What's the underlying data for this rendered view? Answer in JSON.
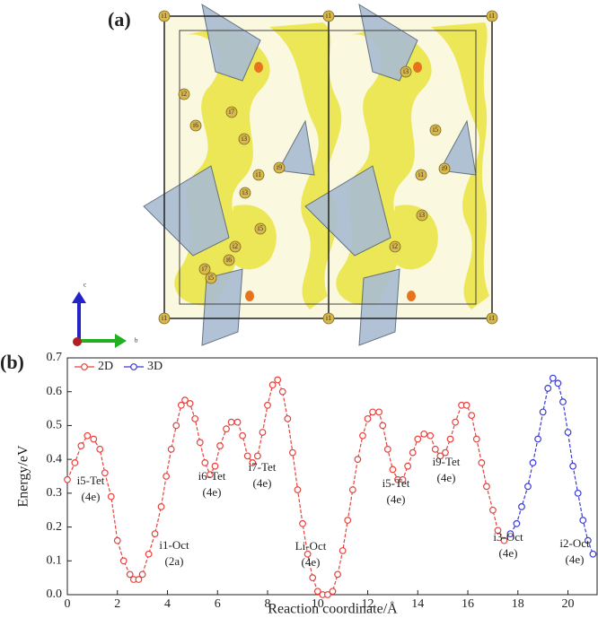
{
  "panel_labels": [
    "(a)",
    "(b)"
  ],
  "structure": {
    "axes": [
      "c",
      "b"
    ],
    "atom_labels": [
      "i1",
      "i1",
      "i1",
      "i1",
      "i1",
      "i1",
      "i2",
      "i3",
      "i5",
      "i6",
      "i7",
      "i9",
      "i1",
      "i2",
      "i3",
      "i5",
      "i6",
      "i7",
      "i9",
      "i1",
      "i3",
      "i5",
      "i2",
      "i3"
    ]
  },
  "chart_data": {
    "type": "line",
    "xlabel": "Reaction coordinate/Å",
    "ylabel": "Energy/eV",
    "xlim": [
      0,
      21.2
    ],
    "ylim": [
      0,
      0.7
    ],
    "xticks": [
      0,
      2,
      4,
      6,
      8,
      10,
      12,
      14,
      16,
      18,
      20
    ],
    "yticks": [
      {
        "value": 0,
        "label": "0.0"
      },
      0.1,
      0.2,
      0.3,
      0.4,
      0.5,
      0.6,
      0.7
    ],
    "legend": "top-left",
    "series": [
      {
        "name": "2D",
        "color": "#e8413c",
        "x": [
          0,
          0.3,
          0.55,
          0.8,
          1.05,
          1.3,
          1.5,
          1.75,
          2.0,
          2.25,
          2.5,
          2.65,
          2.85,
          3.0,
          3.25,
          3.5,
          3.75,
          3.95,
          4.15,
          4.35,
          4.55,
          4.7,
          4.9,
          5.1,
          5.3,
          5.5,
          5.7,
          5.9,
          6.1,
          6.35,
          6.55,
          6.8,
          7.0,
          7.2,
          7.4,
          7.6,
          7.8,
          8.0,
          8.2,
          8.4,
          8.6,
          8.8,
          9.0,
          9.2,
          9.4,
          9.6,
          9.8,
          10.0,
          10.2,
          10.4,
          10.6,
          10.8,
          11.0,
          11.2,
          11.4,
          11.6,
          11.8,
          12.0,
          12.2,
          12.45,
          12.6,
          12.8,
          13.0,
          13.2,
          13.4,
          13.6,
          13.8,
          14.0,
          14.25,
          14.5,
          14.7,
          14.9,
          15.1,
          15.3,
          15.5,
          15.75,
          15.95,
          16.15,
          16.35,
          16.55,
          16.75,
          17.0,
          17.2,
          17.45
        ],
        "values": [
          0.34,
          0.39,
          0.44,
          0.47,
          0.46,
          0.43,
          0.36,
          0.29,
          0.16,
          0.1,
          0.06,
          0.045,
          0.045,
          0.06,
          0.12,
          0.18,
          0.26,
          0.35,
          0.43,
          0.5,
          0.56,
          0.575,
          0.565,
          0.52,
          0.45,
          0.39,
          0.355,
          0.38,
          0.44,
          0.49,
          0.51,
          0.51,
          0.47,
          0.41,
          0.39,
          0.41,
          0.48,
          0.56,
          0.62,
          0.635,
          0.6,
          0.52,
          0.42,
          0.31,
          0.21,
          0.12,
          0.05,
          0.01,
          0.0,
          0.0,
          0.01,
          0.06,
          0.13,
          0.22,
          0.31,
          0.4,
          0.47,
          0.52,
          0.54,
          0.54,
          0.5,
          0.43,
          0.37,
          0.34,
          0.34,
          0.38,
          0.42,
          0.46,
          0.475,
          0.47,
          0.43,
          0.41,
          0.42,
          0.46,
          0.51,
          0.56,
          0.56,
          0.53,
          0.46,
          0.39,
          0.32,
          0.25,
          0.19,
          0.16
        ]
      },
      {
        "name": "3D",
        "color": "#3b3bd6",
        "x": [
          17.7,
          17.95,
          18.15,
          18.4,
          18.6,
          18.8,
          19.0,
          19.2,
          19.4,
          19.6,
          19.8,
          20.0,
          20.2,
          20.4,
          20.6,
          20.8,
          21.0
        ],
        "values": [
          0.18,
          0.21,
          0.26,
          0.32,
          0.39,
          0.46,
          0.54,
          0.61,
          0.64,
          0.625,
          0.57,
          0.48,
          0.38,
          0.3,
          0.22,
          0.16,
          0.12
        ]
      }
    ],
    "annotations": [
      [
        "i5-Tet",
        "(4e)"
      ],
      [
        "i1-Oct",
        "(2a)"
      ],
      [
        "i6-Tet",
        "(4e)"
      ],
      [
        "i7-Tet",
        "(4e)"
      ],
      [
        "Li-Oct",
        "(4e)"
      ],
      [
        "i5-Tet",
        "(4e)"
      ],
      [
        "i9-Tet",
        "(4e)"
      ],
      [
        "i3-Oct",
        "(4e)"
      ],
      [
        "i2-Oct",
        "(4e)"
      ]
    ]
  }
}
